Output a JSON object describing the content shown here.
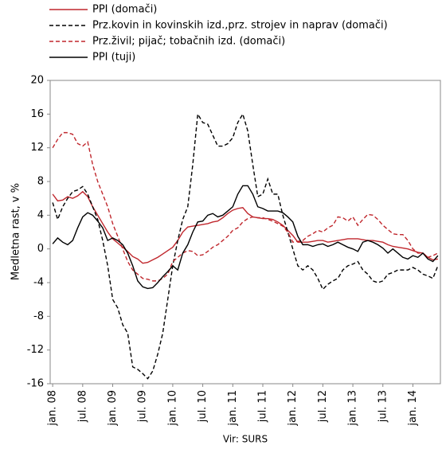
{
  "chart_data": {
    "type": "line",
    "y_label": "Medletna rast, v %",
    "source": "Vir: SURS",
    "categories": [
      "jan. 08",
      null,
      null,
      null,
      null,
      null,
      "jul. 08",
      null,
      null,
      null,
      null,
      null,
      "jan. 09",
      null,
      null,
      null,
      null,
      null,
      "jul. 09",
      null,
      null,
      null,
      null,
      null,
      "jan. 10",
      null,
      null,
      null,
      null,
      null,
      "jul. 10",
      null,
      null,
      null,
      null,
      null,
      "jan. 11",
      null,
      null,
      null,
      null,
      null,
      "jul. 11",
      null,
      null,
      null,
      null,
      null,
      "jan. 12",
      null,
      null,
      null,
      null,
      null,
      "jul. 12",
      null,
      null,
      null,
      null,
      null,
      "jan. 13",
      null,
      null,
      null,
      null,
      null,
      "jul. 13",
      null,
      null,
      null,
      null,
      null,
      "jan. 14",
      null,
      null,
      null,
      null,
      null
    ],
    "series": [
      {
        "name": "PPI (domači)",
        "color": "#c0272d",
        "dashed": false,
        "values": [
          6.5,
          5.7,
          5.8,
          6.2,
          6.0,
          6.3,
          6.8,
          6.2,
          5,
          4,
          3,
          2,
          1.2,
          0.7,
          0.2,
          -0.3,
          -0.9,
          -1.2,
          -1.7,
          -1.6,
          -1.3,
          -1,
          -0.6,
          -0.2,
          0.2,
          1,
          2,
          2.6,
          2.7,
          2.8,
          2.9,
          3,
          3.2,
          3.3,
          3.7,
          4.2,
          4.6,
          4.8,
          4.9,
          4.2,
          3.8,
          3.7,
          3.6,
          3.6,
          3.5,
          3.2,
          2.8,
          2.2,
          1.6,
          0.8,
          0.8,
          0.8,
          0.9,
          1,
          1,
          0.8,
          0.9,
          1,
          1.1,
          1.2,
          1.2,
          1.2,
          1.1,
          1,
          1,
          0.9,
          0.8,
          0.5,
          0.3,
          0.2,
          0.1,
          0,
          -0.2,
          -0.4,
          -0.5,
          -1.0,
          -1.3,
          -1.2
        ]
      },
      {
        "name": "Prz.kovin in kovinskih izd.,prz. strojev in naprav (domači)",
        "color": "#000000",
        "dashed": true,
        "values": [
          5.5,
          3.5,
          5,
          6,
          6.8,
          7,
          7.4,
          6.5,
          5,
          3.5,
          1,
          -2,
          -6,
          -7,
          -9,
          -10,
          -14,
          -14.3,
          -14.8,
          -15.4,
          -14.5,
          -12.5,
          -10,
          -6,
          -2,
          1,
          3.5,
          5,
          10,
          16,
          15,
          14.8,
          13.5,
          12.2,
          12.2,
          12.5,
          13.2,
          15,
          16,
          14,
          10,
          6.2,
          6.5,
          8.3,
          6.5,
          6.5,
          4,
          2,
          0,
          -2,
          -2.5,
          -2,
          -2.5,
          -3.5,
          -4.8,
          -4.2,
          -3.8,
          -3.5,
          -2.5,
          -2.0,
          -1.8,
          -1.5,
          -2.5,
          -3.0,
          -3.8,
          -4,
          -3.8,
          -3,
          -2.8,
          -2.5,
          -2.5,
          -2.5,
          -2.2,
          -2.5,
          -3,
          -3.2,
          -3.5,
          -2
        ]
      },
      {
        "name": "Prz.živil; pijač; tobačnih izd. (domači)",
        "color": "#c0272d",
        "dashed": true,
        "values": [
          12,
          13,
          13.8,
          13.8,
          13.6,
          12.5,
          12.2,
          12.7,
          10,
          8,
          6.5,
          5,
          3,
          1.5,
          0,
          -1.5,
          -2.5,
          -3,
          -3.5,
          -3.6,
          -3.8,
          -3.8,
          -3.5,
          -3,
          -1.5,
          -1,
          -0.5,
          -0.2,
          -0.3,
          -0.8,
          -0.7,
          -0.3,
          0.2,
          0.5,
          1,
          1.5,
          2.2,
          2.5,
          3.2,
          3.6,
          3.8,
          3.7,
          3.7,
          3.5,
          3.3,
          3.0,
          2.7,
          2.0,
          0.8,
          0.9,
          1,
          1.5,
          1.8,
          2.2,
          2.0,
          2.5,
          2.8,
          3.8,
          3.7,
          3.3,
          3.8,
          2.8,
          3.5,
          4.1,
          4.0,
          3.5,
          2.8,
          2.3,
          1.8,
          1.7,
          1.7,
          1.0,
          0,
          -0.5,
          -0.5,
          -1.0,
          -0.8,
          -0.5
        ]
      },
      {
        "name": "PPI (tuji)",
        "color": "#000000",
        "dashed": false,
        "values": [
          0.6,
          1.3,
          0.8,
          0.5,
          1,
          2.5,
          3.8,
          4.3,
          4,
          3.3,
          2.5,
          1,
          1.3,
          1.0,
          0.5,
          -0.5,
          -2,
          -3.8,
          -4.5,
          -4.7,
          -4.6,
          -4,
          -3.3,
          -2.7,
          -2,
          -2.5,
          -0.5,
          0.5,
          2,
          3.2,
          3.3,
          4,
          4.2,
          3.8,
          4,
          4.5,
          5,
          6.5,
          7.5,
          7.5,
          6.5,
          5,
          4.8,
          4.5,
          4.5,
          4.5,
          4.3,
          3.8,
          3.2,
          1.5,
          0.5,
          0.5,
          0.3,
          0.5,
          0.6,
          0.3,
          0.5,
          0.8,
          0.5,
          0.2,
          0,
          -0.3,
          0.8,
          1,
          0.8,
          0.5,
          0.1,
          -0.5,
          0,
          -0.5,
          -1.0,
          -1.2,
          -0.8,
          -1,
          -0.5,
          -1.2,
          -1.5,
          -0.8
        ]
      }
    ],
    "ylim": [
      -16,
      20
    ],
    "yticks": [
      -16,
      -12,
      -8,
      -4,
      0,
      4,
      8,
      12,
      16,
      20
    ],
    "grid": false,
    "legend": "top-left"
  }
}
